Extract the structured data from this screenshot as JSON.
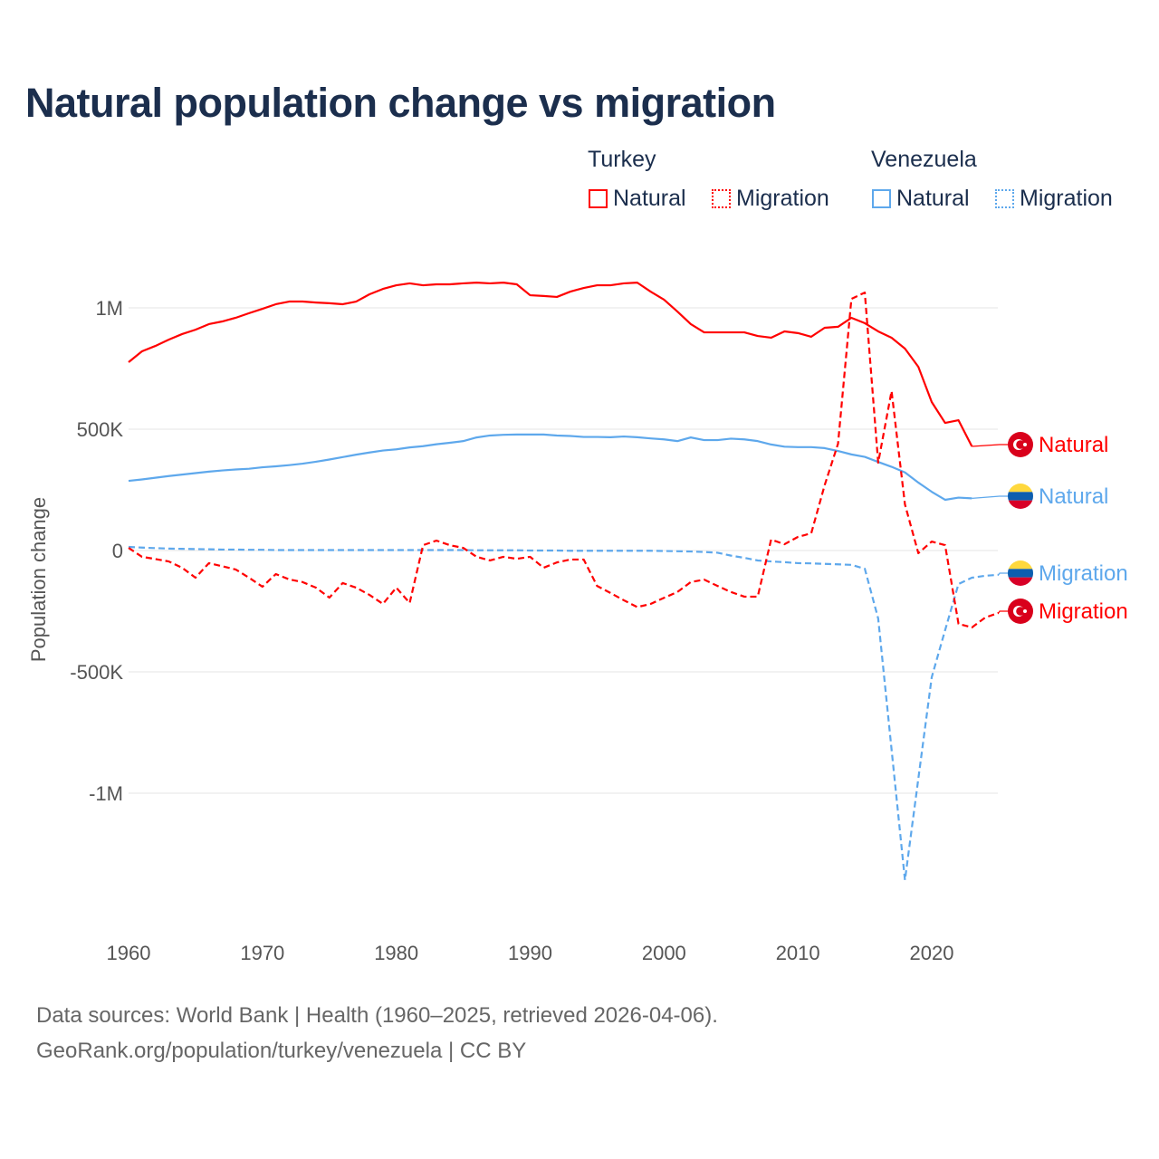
{
  "title": "Natural population change vs migration",
  "legend": {
    "groups": [
      {
        "name": "Turkey",
        "items": [
          {
            "label": "Natural",
            "style": "solid",
            "color": "#ff0000"
          },
          {
            "label": "Migration",
            "style": "dotted",
            "color": "#ff0000"
          }
        ]
      },
      {
        "name": "Venezuela",
        "items": [
          {
            "label": "Natural",
            "style": "solid",
            "color": "#5ea8ec"
          },
          {
            "label": "Migration",
            "style": "dotted",
            "color": "#5ea8ec"
          }
        ]
      }
    ]
  },
  "footer": {
    "line1": "Data sources: World Bank | Health (1960–2025, retrieved 2026-04-06).",
    "line2": "GeoRank.org/population/turkey/venezuela | CC BY"
  },
  "chart_data": {
    "type": "line",
    "title": "Natural population change vs migration",
    "xlabel": "",
    "ylabel": "Population change",
    "xlim": [
      1960,
      2025
    ],
    "ylim": [
      -1500000,
      1200000
    ],
    "xticks": [
      {
        "v": 1960,
        "label": "1960"
      },
      {
        "v": 1970,
        "label": "1970"
      },
      {
        "v": 1980,
        "label": "1980"
      },
      {
        "v": 1990,
        "label": "1990"
      },
      {
        "v": 2000,
        "label": "2000"
      },
      {
        "v": 2010,
        "label": "2010"
      },
      {
        "v": 2020,
        "label": "2020"
      }
    ],
    "yticks": [
      {
        "v": 1000000,
        "label": "1M"
      },
      {
        "v": 500000,
        "label": "500K"
      },
      {
        "v": 0,
        "label": "0"
      },
      {
        "v": -500000,
        "label": "-500K"
      },
      {
        "v": -1000000,
        "label": "-1M"
      }
    ],
    "grid": true,
    "units": "thousands",
    "series": [
      {
        "name": "Turkey Natural",
        "end_label": "Natural",
        "flag": "turkey",
        "color": "#ff0000",
        "dash": false,
        "start": 1960,
        "values": [
          776,
          821,
          843,
          869,
          892,
          910,
          933,
          944,
          959,
          978,
          996,
          1015,
          1026,
          1026,
          1022,
          1019,
          1015,
          1026,
          1056,
          1078,
          1093,
          1101,
          1093,
          1097,
          1097,
          1101,
          1104,
          1101,
          1104,
          1097,
          1052,
          1049,
          1045,
          1067,
          1082,
          1093,
          1093,
          1101,
          1104,
          1067,
          1034,
          985,
          933,
          899,
          899,
          899,
          899,
          884,
          877,
          903,
          896,
          881,
          918,
          922,
          959,
          937,
          903,
          877,
          832,
          757,
          612,
          526,
          537,
          429
        ]
      },
      {
        "name": "Venezuela Natural",
        "end_label": "Natural",
        "flag": "venezuela",
        "color": "#5ea8ec",
        "dash": false,
        "start": 1960,
        "values": [
          287,
          293,
          300,
          307,
          313,
          319,
          325,
          330,
          334,
          337,
          343,
          347,
          352,
          358,
          366,
          375,
          385,
          395,
          404,
          412,
          417,
          425,
          430,
          438,
          444,
          451,
          466,
          474,
          477,
          478,
          478,
          478,
          474,
          472,
          468,
          468,
          467,
          470,
          467,
          462,
          458,
          451,
          466,
          455,
          455,
          461,
          458,
          451,
          437,
          428,
          426,
          426,
          422,
          410,
          396,
          386,
          365,
          345,
          322,
          280,
          242,
          209,
          218,
          215
        ]
      },
      {
        "name": "Venezuela Migration",
        "end_label": "Migration",
        "flag": "venezuela",
        "color": "#5ea8ec",
        "dash": true,
        "start": 1960,
        "values": [
          15,
          12,
          10,
          8,
          7,
          6,
          5,
          4,
          4,
          3,
          3,
          2,
          2,
          2,
          2,
          2,
          2,
          2,
          2,
          2,
          2,
          2,
          2,
          2,
          2,
          2,
          1,
          1,
          1,
          1,
          0,
          0,
          0,
          -1,
          -1,
          -1,
          -1,
          -1,
          -1,
          -1,
          -2,
          -3,
          -4,
          -6,
          -9,
          -21,
          -30,
          -41,
          -45,
          -48,
          -52,
          -53,
          -55,
          -57,
          -59,
          -75,
          -280,
          -820,
          -1358,
          -940,
          -522,
          -328,
          -138,
          -112,
          -104,
          -100
        ]
      },
      {
        "name": "Turkey Migration",
        "end_label": "Migration",
        "flag": "turkey",
        "color": "#ff0000",
        "dash": true,
        "start": 1960,
        "values": [
          11,
          -26,
          -35,
          -45,
          -71,
          -112,
          -52,
          -65,
          -78,
          -112,
          -149,
          -97,
          -119,
          -130,
          -153,
          -194,
          -134,
          -153,
          -183,
          -220,
          -153,
          -216,
          22,
          41,
          22,
          11,
          -26,
          -41,
          -26,
          -34,
          -26,
          -71,
          -49,
          -37,
          -37,
          -146,
          -175,
          -205,
          -233,
          -220,
          -195,
          -171,
          -130,
          -120,
          -146,
          -171,
          -190,
          -190,
          45,
          26,
          56,
          71,
          269,
          440,
          1037,
          1063,
          362,
          657,
          190,
          -11,
          37,
          22,
          -302,
          -317,
          -276,
          -257
        ]
      }
    ]
  }
}
